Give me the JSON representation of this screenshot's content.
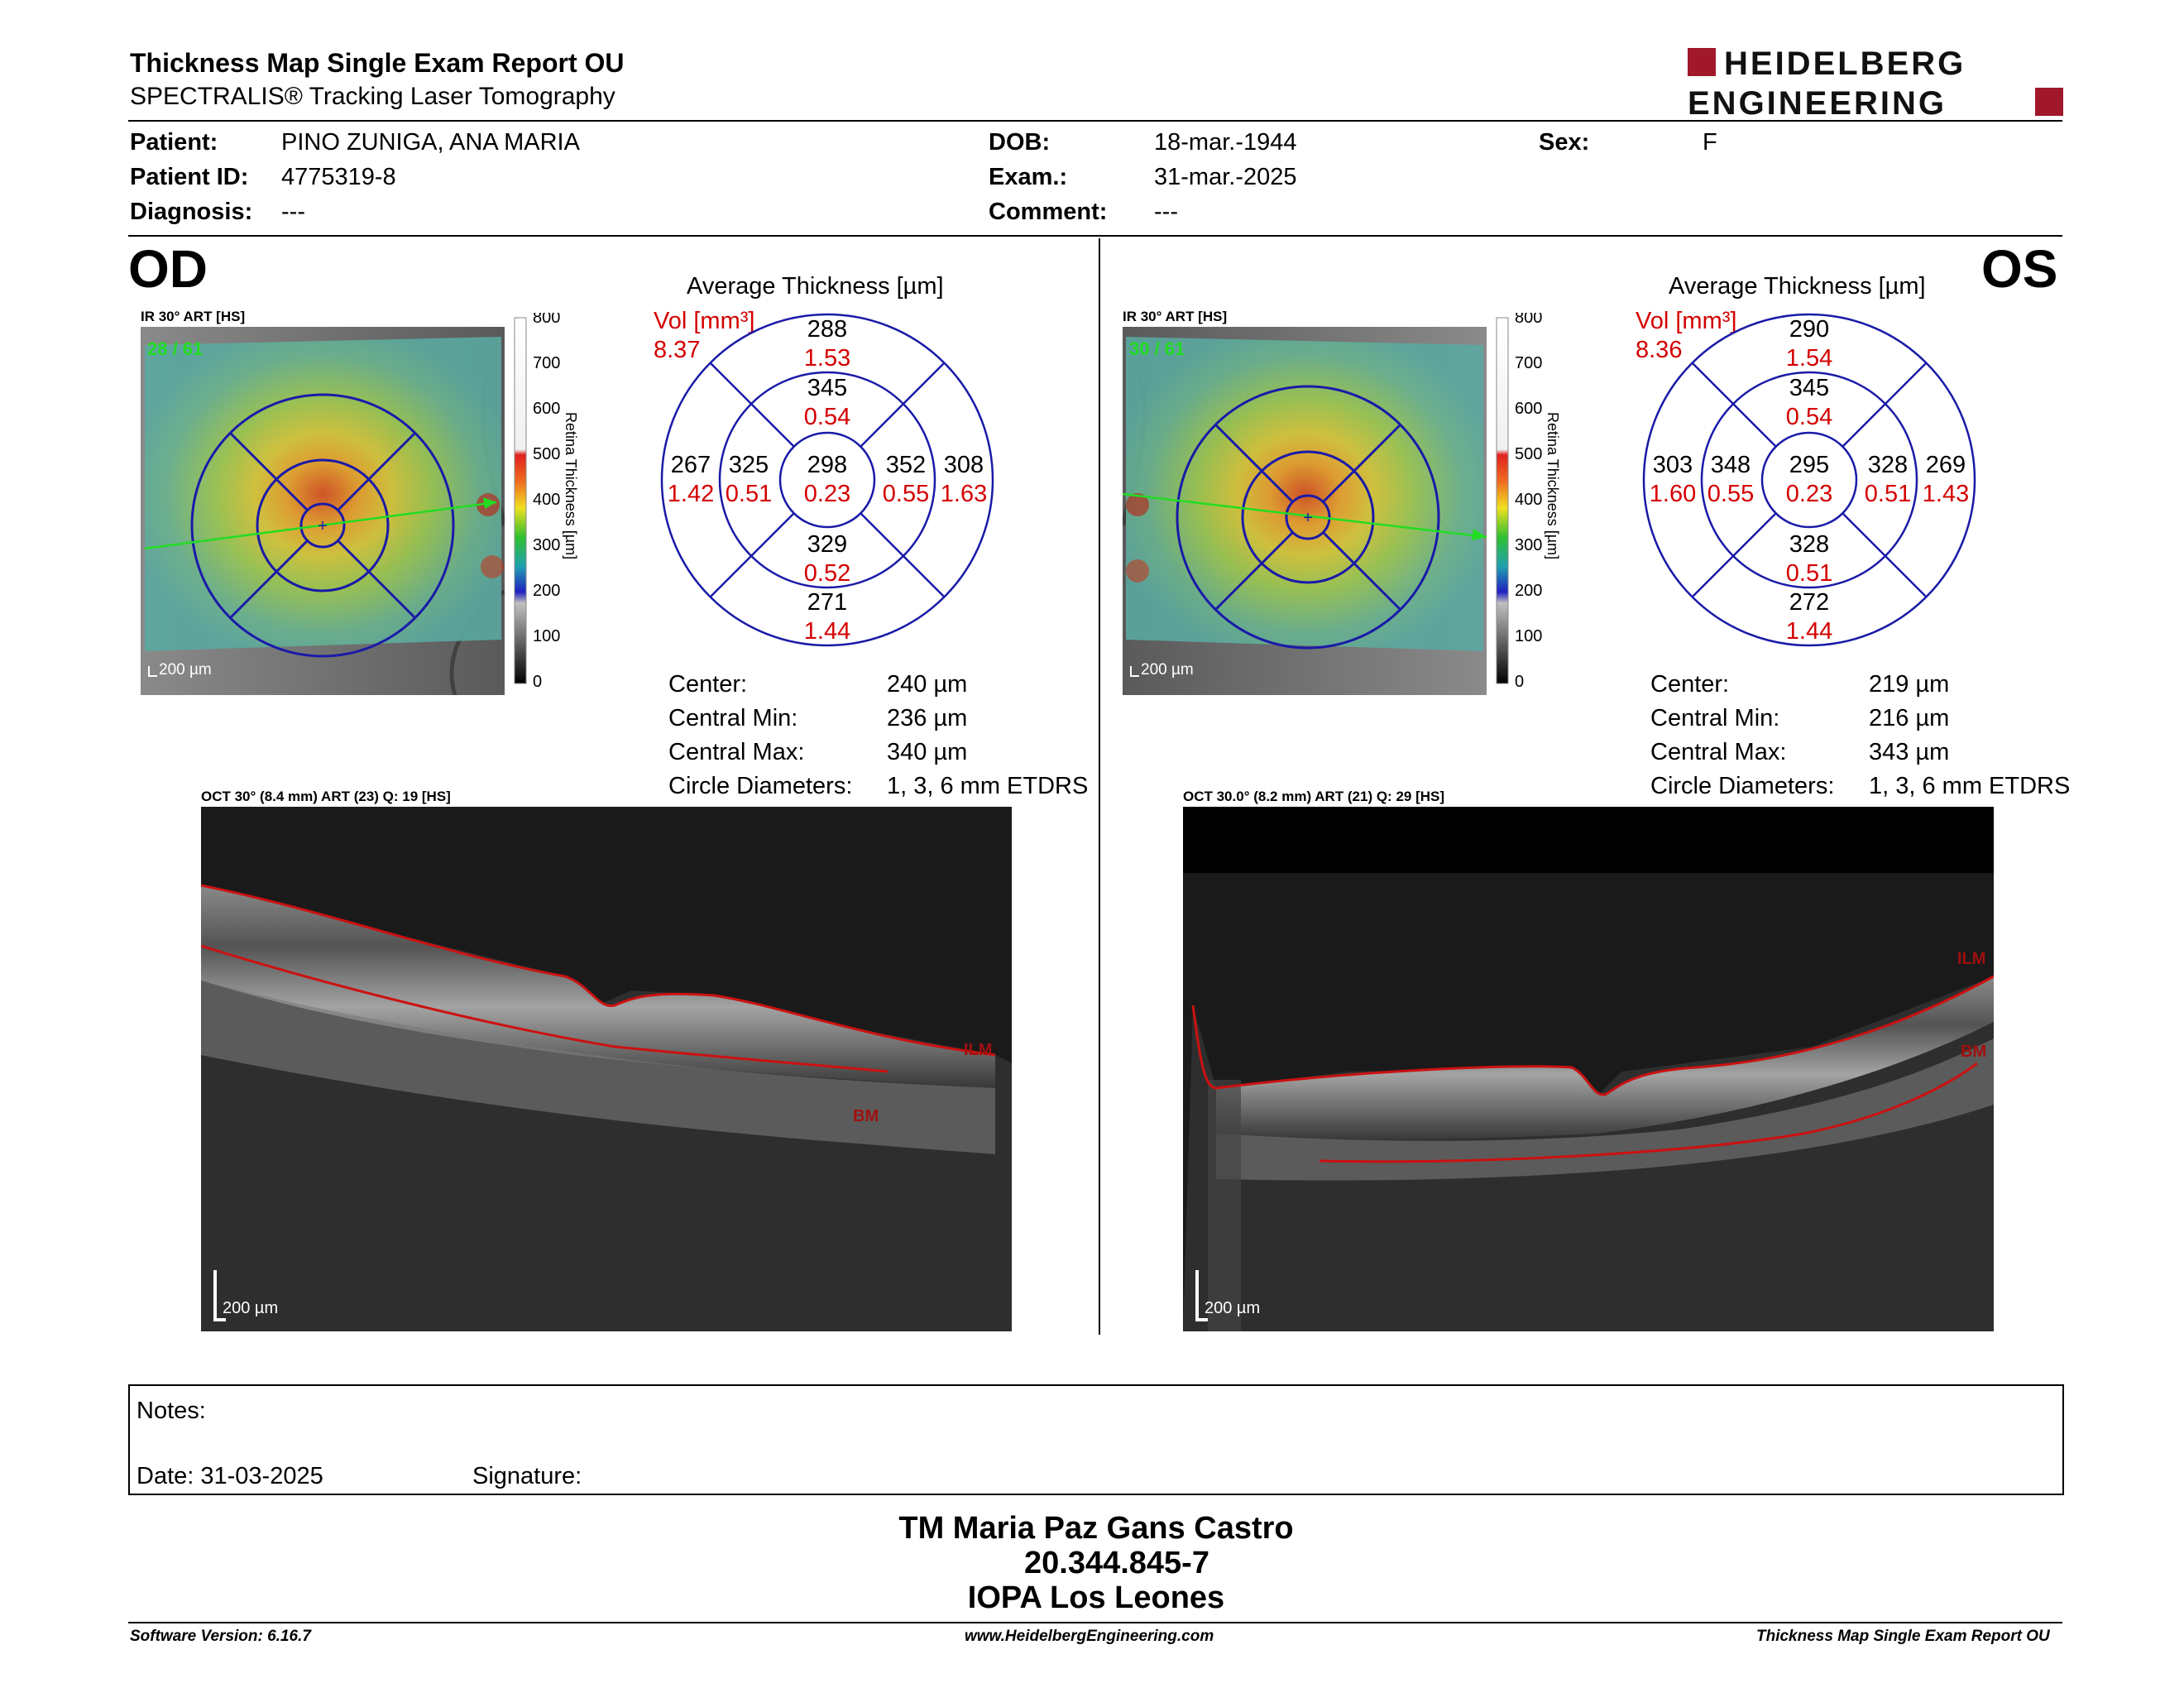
{
  "header": {
    "title": "Thickness Map Single Exam Report OU",
    "subtitle": "SPECTRALIS® Tracking Laser Tomography",
    "logo_line1": "HEIDELBERG",
    "logo_line2": "ENGINEERING"
  },
  "patient": {
    "patient_label": "Patient:",
    "patient_value": "PINO ZUNIGA, ANA MARIA",
    "id_label": "Patient ID:",
    "id_value": "4775319-8",
    "diag_label": "Diagnosis:",
    "diag_value": "---",
    "dob_label": "DOB:",
    "dob_value": "18-mar.-1944",
    "exam_label": "Exam.:",
    "exam_value": "31-mar.-2025",
    "comment_label": "Comment:",
    "comment_value": "---",
    "sex_label": "Sex:",
    "sex_value": "F"
  },
  "od": {
    "eye_label": "OD",
    "ir_caption": "IR 30° ART [HS]",
    "ir_count": "28 / 61",
    "scale_text": "200 µm",
    "avg_title": "Average Thickness [µm]",
    "vol_label": "Vol [mm³]",
    "vol_value": "8.37",
    "sectors": {
      "outer_top": "288",
      "outer_top_vol": "1.53",
      "inner_top": "345",
      "inner_top_vol": "0.54",
      "outer_left": "267",
      "outer_left_vol": "1.42",
      "inner_left": "325",
      "inner_left_vol": "0.51",
      "center": "298",
      "center_vol": "0.23",
      "inner_right": "352",
      "inner_right_vol": "0.55",
      "outer_right": "308",
      "outer_right_vol": "1.63",
      "inner_bottom": "329",
      "inner_bottom_vol": "0.52",
      "outer_bottom": "271",
      "outer_bottom_vol": "1.44"
    },
    "stats": {
      "center_label": "Center:",
      "center_value": "240 µm",
      "min_label": "Central Min:",
      "min_value": "236 µm",
      "max_label": "Central Max:",
      "max_value": "340 µm",
      "diam_label": "Circle Diameters:",
      "diam_value": "1, 3, 6 mm ETDRS"
    },
    "oct_caption": "OCT 30° (8.4 mm) ART (23) Q: 19 [HS]",
    "oct_scale": "200 µm",
    "ilm_label": "ILM",
    "bm_label": "BM"
  },
  "os": {
    "eye_label": "OS",
    "ir_caption": "IR 30° ART [HS]",
    "ir_count": "30 / 61",
    "scale_text": "200 µm",
    "avg_title": "Average Thickness [µm]",
    "vol_label": "Vol [mm³]",
    "vol_value": "8.36",
    "sectors": {
      "outer_top": "290",
      "outer_top_vol": "1.54",
      "inner_top": "345",
      "inner_top_vol": "0.54",
      "outer_left": "303",
      "outer_left_vol": "1.60",
      "inner_left": "348",
      "inner_left_vol": "0.55",
      "center": "295",
      "center_vol": "0.23",
      "inner_right": "328",
      "inner_right_vol": "0.51",
      "outer_right": "269",
      "outer_right_vol": "1.43",
      "inner_bottom": "328",
      "inner_bottom_vol": "0.51",
      "outer_bottom": "272",
      "outer_bottom_vol": "1.44"
    },
    "stats": {
      "center_label": "Center:",
      "center_value": "219 µm",
      "min_label": "Central Min:",
      "min_value": "216 µm",
      "max_label": "Central Max:",
      "max_value": "343 µm",
      "diam_label": "Circle Diameters:",
      "diam_value": "1, 3, 6 mm ETDRS"
    },
    "oct_caption": "OCT 30.0° (8.2 mm) ART (21) Q: 29 [HS]",
    "oct_scale": "200 µm",
    "ilm_label": "ILM",
    "bm_label": "BM"
  },
  "colorbar": {
    "ticks": [
      "800",
      "700",
      "600",
      "500",
      "400",
      "300",
      "200",
      "100",
      "0"
    ],
    "title": "Retina Thickness [µm]"
  },
  "notes": {
    "notes_label": "Notes:",
    "date_label": "Date: 31-03-2025",
    "signature_label": "Signature:"
  },
  "signature_block": {
    "line1": "TM Maria Paz Gans Castro",
    "line2": "20.344.845-7",
    "line3": "IOPA Los Leones"
  },
  "footer": {
    "software": "Software Version: 6.16.7",
    "website": "www.HeidelbergEngineering.com",
    "report_name": "Thickness Map Single Exam Report OU"
  },
  "colors": {
    "accent_red": "#a0182a",
    "vol_red": "#d40000",
    "etdrs_blue": "#1a1aa8",
    "scan_green": "#22dd22",
    "ilm_line": "#cc1111"
  }
}
